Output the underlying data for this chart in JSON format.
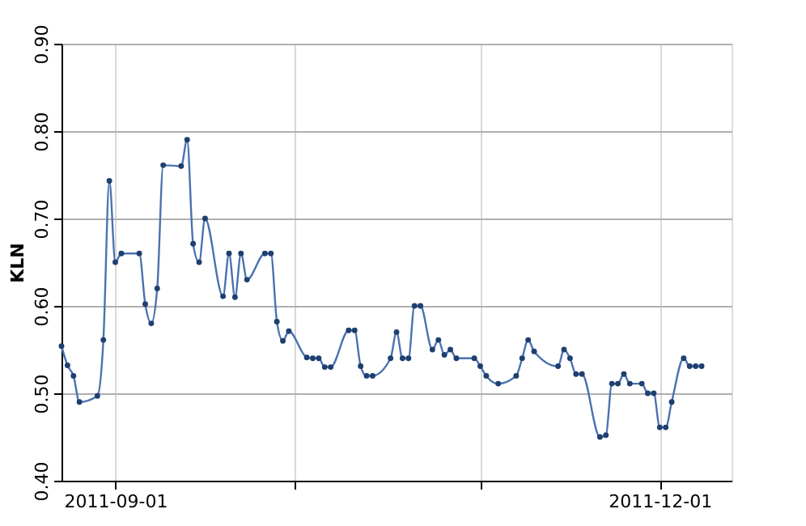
{
  "chart_data": {
    "type": "line",
    "ylabel": "KLN",
    "x": [
      "2011-08-23",
      "2011-08-24",
      "2011-08-25",
      "2011-08-26",
      "2011-08-29",
      "2011-08-30",
      "2011-08-31",
      "2011-09-01",
      "2011-09-02",
      "2011-09-05",
      "2011-09-06",
      "2011-09-07",
      "2011-09-08",
      "2011-09-09",
      "2011-09-12",
      "2011-09-13",
      "2011-09-14",
      "2011-09-15",
      "2011-09-16",
      "2011-09-19",
      "2011-09-20",
      "2011-09-21",
      "2011-09-22",
      "2011-09-23",
      "2011-09-26",
      "2011-09-27",
      "2011-09-28",
      "2011-09-29",
      "2011-09-30",
      "2011-10-03",
      "2011-10-04",
      "2011-10-05",
      "2011-10-06",
      "2011-10-07",
      "2011-10-10",
      "2011-10-11",
      "2011-10-12",
      "2011-10-13",
      "2011-10-14",
      "2011-10-17",
      "2011-10-18",
      "2011-10-19",
      "2011-10-20",
      "2011-10-21",
      "2011-10-22",
      "2011-10-24",
      "2011-10-25",
      "2011-10-26",
      "2011-10-27",
      "2011-10-28",
      "2011-10-31",
      "2011-11-01",
      "2011-11-02",
      "2011-11-04",
      "2011-11-07",
      "2011-11-08",
      "2011-11-09",
      "2011-11-10",
      "2011-11-14",
      "2011-11-15",
      "2011-11-16",
      "2011-11-17",
      "2011-11-18",
      "2011-11-21",
      "2011-11-22",
      "2011-11-23",
      "2011-11-24",
      "2011-11-25",
      "2011-11-26",
      "2011-11-28",
      "2011-11-29",
      "2011-11-30",
      "2011-12-01",
      "2011-12-02",
      "2011-12-03",
      "2011-12-05",
      "2011-12-06",
      "2011-12-07",
      "2011-12-08"
    ],
    "series": [
      {
        "color": "#4a72b0",
        "values": [
          0.554,
          0.532,
          0.52,
          0.49,
          0.497,
          0.561,
          0.743,
          0.65,
          0.66,
          0.66,
          0.602,
          0.58,
          0.62,
          0.761,
          0.76,
          0.79,
          0.671,
          0.65,
          0.7,
          0.611,
          0.66,
          0.61,
          0.66,
          0.63,
          0.66,
          0.66,
          0.582,
          0.56,
          0.571,
          0.541,
          0.54,
          0.54,
          0.53,
          0.53,
          0.572,
          0.572,
          0.531,
          0.52,
          0.52,
          0.54,
          0.57,
          0.54,
          0.54,
          0.6,
          0.6,
          0.55,
          0.561,
          0.544,
          0.55,
          0.54,
          0.54,
          0.531,
          0.52,
          0.511,
          0.52,
          0.54,
          0.561,
          0.548,
          0.531,
          0.55,
          0.54,
          0.522,
          0.522,
          0.45,
          0.452,
          0.511,
          0.511,
          0.522,
          0.511,
          0.511,
          0.5,
          0.5,
          0.461,
          0.461,
          0.49,
          0.54,
          0.531,
          0.531,
          0.531
        ]
      }
    ],
    "xlim": [
      "2011-08-23",
      "2011-12-13"
    ],
    "xticks": [
      {
        "value": "2011-09-01",
        "label": "2011-09-01"
      },
      {
        "value": "2011-10-01",
        "label": null
      },
      {
        "value": "2011-11-01",
        "label": null
      },
      {
        "value": "2011-12-01",
        "label": "2011-12-01"
      }
    ],
    "ylim": [
      0.4,
      0.9
    ],
    "yticks": [
      {
        "value": 0.4,
        "label": "0.40"
      },
      {
        "value": 0.5,
        "label": "0.50"
      },
      {
        "value": 0.6,
        "label": "0.60"
      },
      {
        "value": 0.7,
        "label": "0.70"
      },
      {
        "value": 0.8,
        "label": "0.80"
      },
      {
        "value": 0.9,
        "label": "0.90"
      }
    ],
    "grid": true,
    "marker": "circle",
    "line_style": "solid"
  }
}
